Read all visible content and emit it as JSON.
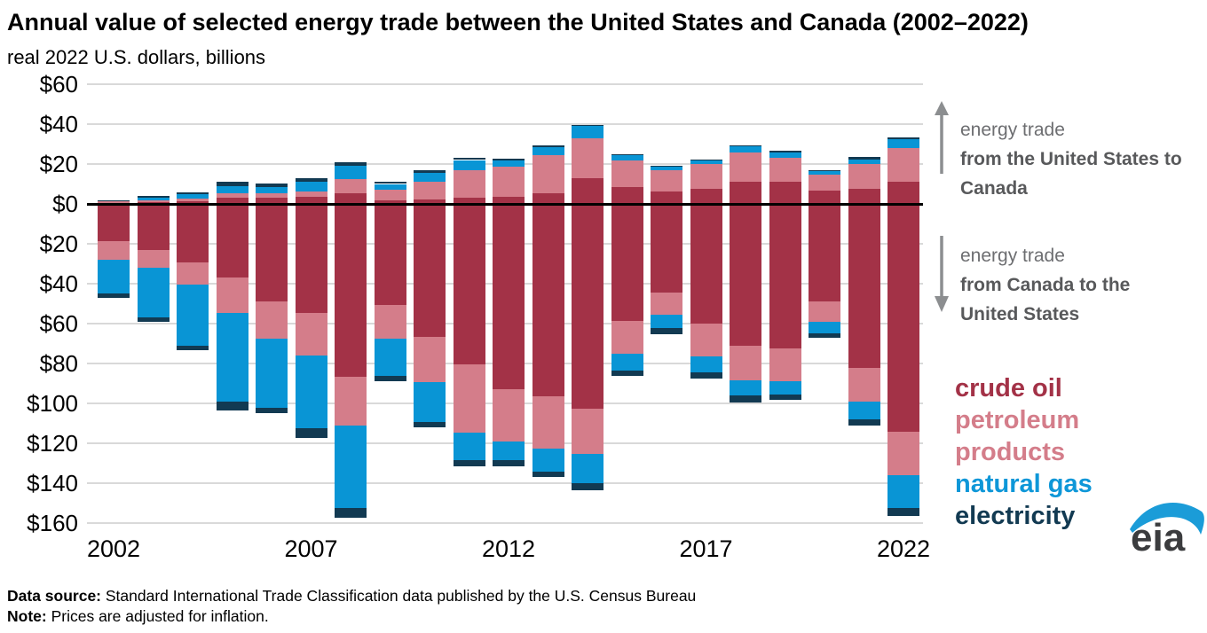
{
  "header": {
    "title": "Annual value of selected energy trade between the United States and Canada (2002–2022)",
    "subtitle": "real 2022 U.S. dollars, billions"
  },
  "annotations": {
    "up": {
      "line1": "energy trade",
      "line2": "from the United States to Canada"
    },
    "down": {
      "line1": "energy trade",
      "line2": "from Canada to the United States"
    }
  },
  "legend": [
    {
      "label": "crude oil",
      "color": "#a33247"
    },
    {
      "label": "petroleum products",
      "color": "#d47d8a"
    },
    {
      "label": "natural gas",
      "color": "#0e97d8"
    },
    {
      "label": "electricity",
      "color": "#123a52"
    }
  ],
  "footer": {
    "source_label": "Data source:",
    "source_text": " Standard International Trade Classification data published by the U.S. Census Bureau",
    "note_label": "Note:",
    "note_text": " Prices are adjusted for inflation."
  },
  "logo": {
    "text": "eia"
  },
  "chart_data": {
    "type": "bar",
    "stacked": true,
    "diverging": true,
    "title": "Annual value of selected energy trade between the United States and Canada (2002–2022)",
    "unit": "real 2022 U.S. dollars, billions",
    "positive_direction_label": "energy trade from the United States to Canada",
    "negative_direction_label": "energy trade from Canada to the United States",
    "grid": true,
    "ylim": [
      -160,
      60
    ],
    "y_axis": {
      "ticks": [
        60,
        40,
        20,
        0,
        -20,
        -40,
        -60,
        -80,
        -100,
        -120,
        -140,
        -160
      ],
      "labels": [
        "$60",
        "$40",
        "$20",
        "$0",
        "$20",
        "$40",
        "$60",
        "$80",
        "$100",
        "$120",
        "$140",
        "$160"
      ]
    },
    "x_axis": {
      "ticks": [
        2002,
        2007,
        2012,
        2017,
        2022
      ]
    },
    "years": [
      2002,
      2003,
      2004,
      2005,
      2006,
      2007,
      2008,
      2009,
      2010,
      2011,
      2012,
      2013,
      2014,
      2015,
      2016,
      2017,
      2018,
      2019,
      2020,
      2021,
      2022
    ],
    "stack_order": [
      "crude_oil",
      "petroleum_products",
      "natural_gas",
      "electricity"
    ],
    "colors": {
      "crude_oil": "#a33247",
      "petroleum_products": "#d47d8a",
      "natural_gas": "#0995d5",
      "electricity": "#123a52"
    },
    "us_to_canada": {
      "crude_oil": [
        0.4,
        1.0,
        1.3,
        3.0,
        3.2,
        3.7,
        5.2,
        1.9,
        2.4,
        2.9,
        3.4,
        5.2,
        13.1,
        8.5,
        6.3,
        7.5,
        11.1,
        11.2,
        6.8,
        7.5,
        11.1
      ],
      "petroleum_products": [
        0.9,
        1.0,
        1.3,
        2.2,
        2.3,
        2.5,
        7.4,
        5.0,
        8.5,
        14.0,
        15.3,
        19.2,
        19.8,
        13.2,
        10.4,
        12.4,
        14.7,
        12.1,
        7.9,
        12.5,
        17.1
      ],
      "natural_gas": [
        0.4,
        1.0,
        2.1,
        3.7,
        2.9,
        4.8,
        6.4,
        3.1,
        4.8,
        5.1,
        3.0,
        4.0,
        6.0,
        2.7,
        1.9,
        1.9,
        3.0,
        2.5,
        2.0,
        2.3,
        4.2
      ],
      "electricity": [
        0.3,
        1.0,
        1.2,
        2.1,
        2.0,
        2.0,
        2.0,
        1.2,
        1.1,
        0.9,
        0.8,
        1.1,
        0.7,
        0.6,
        0.6,
        0.5,
        0.7,
        0.7,
        0.4,
        1.1,
        0.9
      ]
    },
    "canada_to_us": {
      "crude_oil": [
        18.5,
        23.0,
        29.5,
        37.0,
        49.0,
        54.5,
        86.5,
        50.5,
        66.5,
        80.5,
        93.0,
        96.5,
        102.5,
        58.5,
        44.5,
        60.0,
        71.0,
        72.5,
        49.0,
        82.0,
        114.0
      ],
      "petroleum_products": [
        9.5,
        9.0,
        11.0,
        17.5,
        18.5,
        21.5,
        24.5,
        17.0,
        23.0,
        34.0,
        26.0,
        26.0,
        23.0,
        16.5,
        11.0,
        16.5,
        17.5,
        16.5,
        10.0,
        17.0,
        22.0
      ],
      "natural_gas": [
        17.0,
        25.0,
        30.5,
        44.5,
        34.5,
        36.5,
        41.5,
        18.5,
        20.0,
        14.0,
        9.5,
        11.5,
        14.5,
        8.5,
        6.5,
        8.0,
        7.7,
        6.4,
        5.8,
        9.0,
        16.3
      ],
      "electricity": [
        2.0,
        2.0,
        2.5,
        4.5,
        3.0,
        5.0,
        5.0,
        3.0,
        2.7,
        3.2,
        3.0,
        3.0,
        3.6,
        2.5,
        3.5,
        3.0,
        3.3,
        2.8,
        2.3,
        3.0,
        4.0
      ]
    }
  }
}
